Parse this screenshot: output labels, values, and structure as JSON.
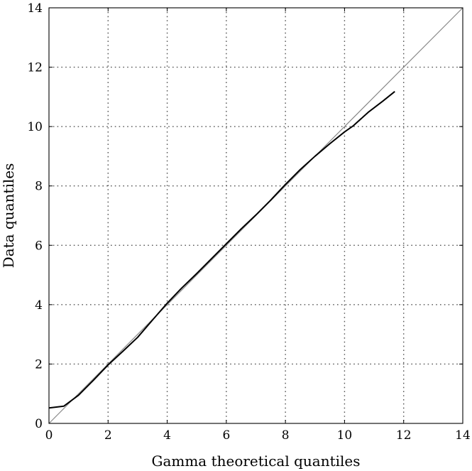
{
  "chart_data": {
    "type": "line",
    "title": "",
    "xlabel": "Gamma theoretical quantiles",
    "ylabel": "Data quantiles",
    "xlim": [
      0,
      14
    ],
    "ylim": [
      0,
      14
    ],
    "xticks": [
      0,
      2,
      4,
      6,
      8,
      10,
      12,
      14
    ],
    "yticks": [
      0,
      2,
      4,
      6,
      8,
      10,
      12,
      14
    ],
    "grid": true,
    "reference_line": {
      "x": [
        0,
        14
      ],
      "y": [
        0,
        14
      ],
      "color": "#888888"
    },
    "series": [
      {
        "color": "#000000",
        "x": [
          0.0,
          0.5,
          1.0,
          1.5,
          2.0,
          2.5,
          3.0,
          3.5,
          4.0,
          4.5,
          5.0,
          5.5,
          6.0,
          6.5,
          7.0,
          7.5,
          8.0,
          8.5,
          9.0,
          9.5,
          10.0,
          10.3,
          10.8,
          11.3,
          11.7
        ],
        "y": [
          0.52,
          0.58,
          0.95,
          1.45,
          1.97,
          2.43,
          2.9,
          3.48,
          4.05,
          4.57,
          5.05,
          5.55,
          6.05,
          6.55,
          7.02,
          7.52,
          8.05,
          8.55,
          9.0,
          9.42,
          9.82,
          10.03,
          10.48,
          10.86,
          11.18
        ]
      }
    ]
  }
}
